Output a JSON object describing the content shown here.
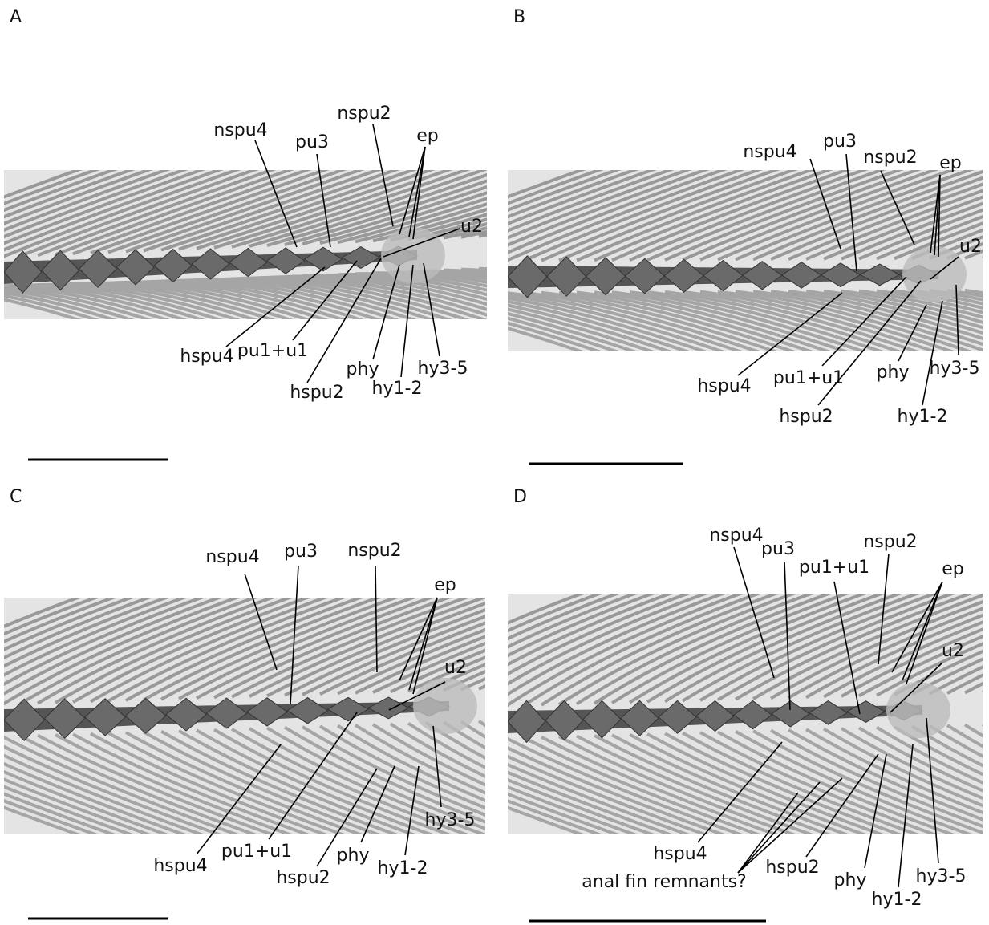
{
  "panels": [
    {
      "letter": "A",
      "labels": [
        "nspu4",
        "pu3",
        "nspu2",
        "ep",
        "u2",
        "hspu4",
        "pu1+u1",
        "hspu2",
        "phy",
        "hy1-2",
        "hy3-5"
      ]
    },
    {
      "letter": "B",
      "labels": [
        "nspu4",
        "pu3",
        "nspu2",
        "ep",
        "u2",
        "hspu4",
        "pu1+u1",
        "hspu2",
        "phy",
        "hy1-2",
        "hy3-5"
      ]
    },
    {
      "letter": "C",
      "labels": [
        "nspu4",
        "pu3",
        "nspu2",
        "ep",
        "u2",
        "hspu4",
        "pu1+u1",
        "hspu2",
        "phy",
        "hy1-2",
        "hy3-5"
      ]
    },
    {
      "letter": "D",
      "labels": [
        "nspu4",
        "pu3",
        "pu1+u1",
        "nspu2",
        "ep",
        "u2",
        "hspu4",
        "hspu2",
        "phy",
        "hy1-2",
        "hy3-5",
        "anal fin remnants?"
      ]
    }
  ]
}
